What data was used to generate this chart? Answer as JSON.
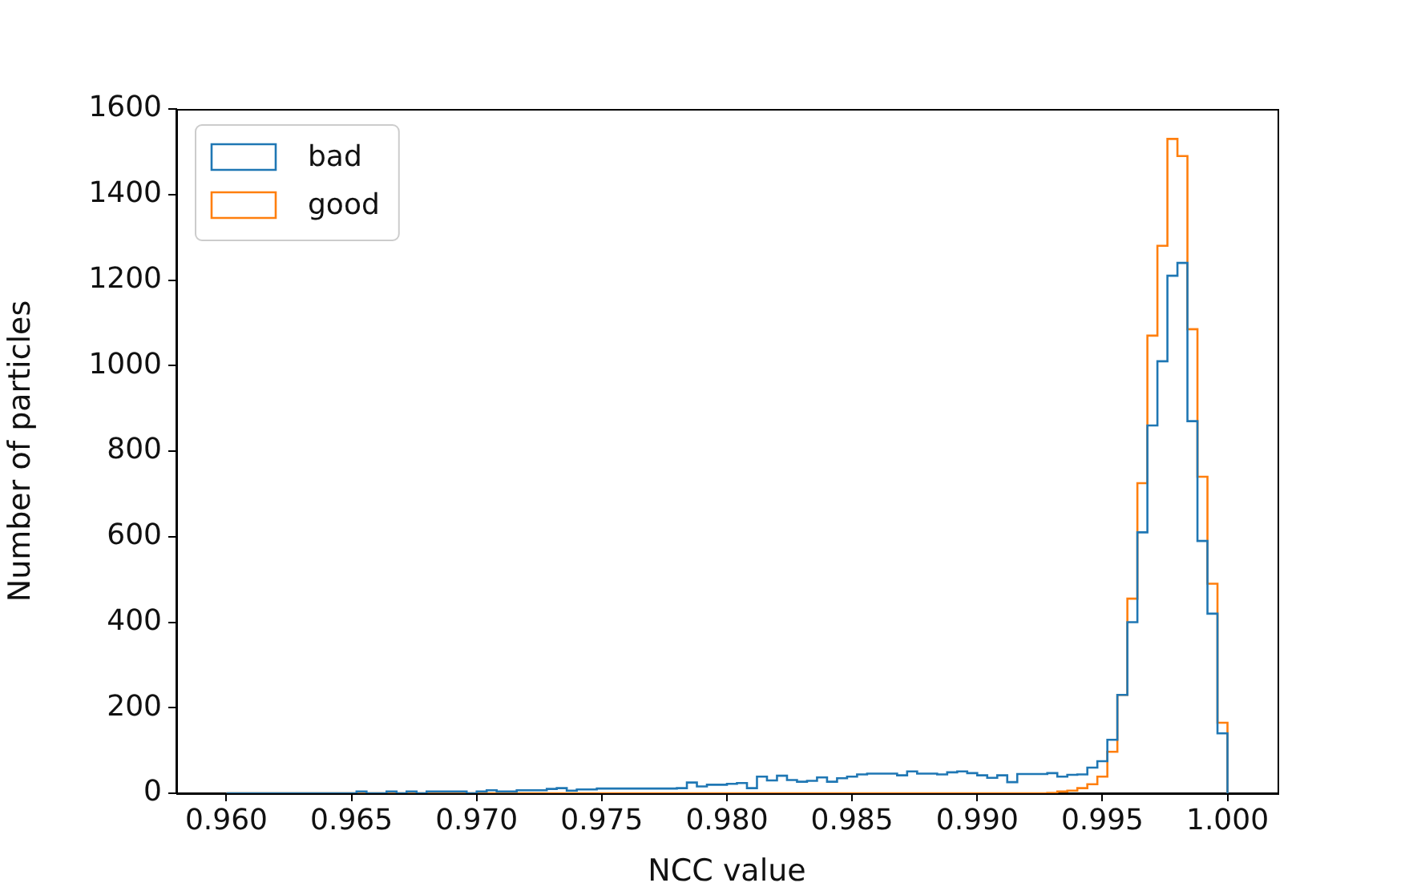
{
  "chart_data": {
    "type": "histogram",
    "xlabel": "NCC value",
    "ylabel": "Number of particles",
    "bins": [
      0.96,
      0.9604,
      0.9608,
      0.9612,
      0.9616,
      0.962,
      0.9624,
      0.9628,
      0.9632,
      0.9636,
      0.964,
      0.9644,
      0.9648,
      0.9652,
      0.9656,
      0.966,
      0.9664,
      0.9668,
      0.9672,
      0.9676,
      0.968,
      0.9684,
      0.9688,
      0.9692,
      0.9696,
      0.97,
      0.9704,
      0.9708,
      0.9712,
      0.9716,
      0.972,
      0.9724,
      0.9728,
      0.9732,
      0.9736,
      0.974,
      0.9744,
      0.9748,
      0.9752,
      0.9756,
      0.976,
      0.9764,
      0.9768,
      0.9772,
      0.9776,
      0.978,
      0.9784,
      0.9788,
      0.9792,
      0.9796,
      0.98,
      0.9804,
      0.9808,
      0.9812,
      0.9816,
      0.982,
      0.9824,
      0.9828,
      0.9832,
      0.9836,
      0.984,
      0.9844,
      0.9848,
      0.9852,
      0.9856,
      0.986,
      0.9864,
      0.9868,
      0.9872,
      0.9876,
      0.988,
      0.9884,
      0.9888,
      0.9892,
      0.9896,
      0.99,
      0.9904,
      0.9908,
      0.9912,
      0.9916,
      0.992,
      0.9924,
      0.9928,
      0.9932,
      0.9936,
      0.994,
      0.9944,
      0.9948,
      0.9952,
      0.9956,
      0.996,
      0.9964,
      0.9968,
      0.9972,
      0.9976,
      0.998,
      0.9984,
      0.9988,
      0.9992,
      0.9996,
      1.0
    ],
    "series": [
      {
        "name": "bad",
        "color": "#1f77b4",
        "values": [
          0,
          0,
          0,
          0,
          0,
          0,
          0,
          0,
          0,
          0,
          0,
          0,
          0,
          4,
          0,
          0,
          4,
          0,
          4,
          0,
          4,
          4,
          4,
          4,
          0,
          4,
          7,
          4,
          4,
          7,
          7,
          7,
          10,
          12,
          6,
          9,
          9,
          11,
          11,
          11,
          11,
          11,
          11,
          11,
          11,
          12,
          25,
          16,
          20,
          20,
          22,
          24,
          12,
          39,
          30,
          41,
          31,
          27,
          29,
          37,
          27,
          35,
          39,
          44,
          46,
          46,
          46,
          42,
          51,
          46,
          46,
          44,
          49,
          51,
          47,
          42,
          36,
          42,
          26,
          45,
          45,
          45,
          47,
          39,
          43,
          44,
          60,
          75,
          125,
          230,
          400,
          610,
          860,
          1010,
          1210,
          1240,
          870,
          590,
          420,
          140
        ]
      },
      {
        "name": "good",
        "color": "#ff7f0e",
        "values": [
          0,
          0,
          0,
          0,
          0,
          0,
          0,
          0,
          0,
          0,
          0,
          0,
          0,
          0,
          0,
          0,
          0,
          0,
          0,
          0,
          0,
          0,
          0,
          0,
          0,
          0,
          0,
          0,
          0,
          0,
          0,
          0,
          0,
          0,
          0,
          0,
          0,
          0,
          0,
          0,
          0,
          0,
          0,
          0,
          0,
          0,
          0,
          0,
          0,
          0,
          0,
          0,
          0,
          0,
          0,
          0,
          0,
          0,
          0,
          0,
          0,
          0,
          0,
          0,
          0,
          0,
          0,
          0,
          0,
          0,
          0,
          0,
          0,
          0,
          0,
          0,
          0,
          0,
          0,
          0,
          0,
          0,
          1,
          4,
          6,
          12,
          21,
          39,
          97,
          230,
          455,
          725,
          1070,
          1280,
          1530,
          1490,
          1085,
          740,
          490,
          165
        ]
      }
    ],
    "xlim": [
      0.958,
      1.002
    ],
    "xticks": [
      {
        "value": 0.96,
        "label": "0.960"
      },
      {
        "value": 0.965,
        "label": "0.965"
      },
      {
        "value": 0.97,
        "label": "0.970"
      },
      {
        "value": 0.975,
        "label": "0.975"
      },
      {
        "value": 0.98,
        "label": "0.980"
      },
      {
        "value": 0.985,
        "label": "0.985"
      },
      {
        "value": 0.99,
        "label": "0.990"
      },
      {
        "value": 0.995,
        "label": "0.995"
      },
      {
        "value": 1.0,
        "label": "1.000"
      }
    ],
    "ylim": [
      0,
      1600
    ],
    "yticks": [
      0,
      200,
      400,
      600,
      800,
      1000,
      1200,
      1400,
      1600
    ],
    "legend": "top left"
  }
}
